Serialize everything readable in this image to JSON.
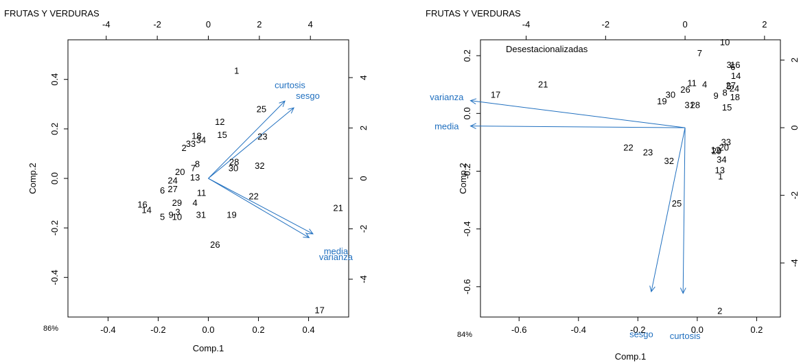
{
  "chart_data": [
    {
      "type": "scatter",
      "subtype": "biplot",
      "title": "FRUTAS Y VERDURAS",
      "xlabel": "Comp.1",
      "ylabel": "Comp.2",
      "footnote": "86%",
      "xlim": [
        -0.56,
        0.56
      ],
      "ylim": [
        -0.56,
        0.56
      ],
      "x_ticks": [
        "-0.4",
        "-0.2",
        "0.0",
        "0.2",
        "0.4"
      ],
      "x_tick_values": [
        -0.4,
        -0.2,
        0.0,
        0.2,
        0.4
      ],
      "y_ticks": [
        "-0.4",
        "-0.2",
        "0.0",
        "0.2",
        "0.4"
      ],
      "y_tick_values": [
        -0.4,
        -0.2,
        0.0,
        0.2,
        0.4
      ],
      "top_lim": [
        -5.5,
        5.5
      ],
      "top_ticks": [
        "-4",
        "-2",
        "0",
        "2",
        "4"
      ],
      "top_tick_values": [
        -4,
        -2,
        0,
        2,
        4
      ],
      "right_lim": [
        -5.5,
        5.5
      ],
      "right_ticks": [
        "-4",
        "-2",
        "0",
        "2",
        "4"
      ],
      "right_tick_values": [
        -4,
        -2,
        0,
        2,
        4
      ],
      "points": [
        {
          "label": "1",
          "x": 0.113,
          "y": 0.436
        },
        {
          "label": "2",
          "x": -0.097,
          "y": 0.125
        },
        {
          "label": "3",
          "x": -0.122,
          "y": -0.135
        },
        {
          "label": "4",
          "x": -0.053,
          "y": -0.097
        },
        {
          "label": "5",
          "x": -0.183,
          "y": -0.154
        },
        {
          "label": "6",
          "x": -0.183,
          "y": -0.047
        },
        {
          "label": "7",
          "x": -0.06,
          "y": 0.043
        },
        {
          "label": "8",
          "x": -0.044,
          "y": 0.06
        },
        {
          "label": "9",
          "x": -0.149,
          "y": -0.146
        },
        {
          "label": "10",
          "x": -0.125,
          "y": -0.154
        },
        {
          "label": "11",
          "x": -0.027,
          "y": -0.057
        },
        {
          "label": "12",
          "x": 0.046,
          "y": 0.23
        },
        {
          "label": "13",
          "x": -0.053,
          "y": 0.006
        },
        {
          "label": "14",
          "x": -0.246,
          "y": -0.126
        },
        {
          "label": "15",
          "x": 0.055,
          "y": 0.177
        },
        {
          "label": "16",
          "x": -0.263,
          "y": -0.104
        },
        {
          "label": "17",
          "x": 0.444,
          "y": -0.531
        },
        {
          "label": "18",
          "x": -0.047,
          "y": 0.173
        },
        {
          "label": "19",
          "x": 0.093,
          "y": -0.146
        },
        {
          "label": "20",
          "x": -0.113,
          "y": 0.028
        },
        {
          "label": "21",
          "x": 0.518,
          "y": -0.118
        },
        {
          "label": "22",
          "x": 0.181,
          "y": -0.07
        },
        {
          "label": "23",
          "x": 0.216,
          "y": 0.17
        },
        {
          "label": "24",
          "x": -0.142,
          "y": -0.007
        },
        {
          "label": "25",
          "x": 0.212,
          "y": 0.281
        },
        {
          "label": "26",
          "x": 0.027,
          "y": -0.266
        },
        {
          "label": "27",
          "x": -0.142,
          "y": -0.041
        },
        {
          "label": "28",
          "x": 0.103,
          "y": 0.068
        },
        {
          "label": "29",
          "x": -0.125,
          "y": -0.097
        },
        {
          "label": "30",
          "x": 0.1,
          "y": 0.043
        },
        {
          "label": "31",
          "x": -0.029,
          "y": -0.146
        },
        {
          "label": "32",
          "x": 0.205,
          "y": 0.053
        },
        {
          "label": "33",
          "x": -0.07,
          "y": 0.142
        },
        {
          "label": "34",
          "x": -0.029,
          "y": 0.156
        }
      ],
      "arrows": [
        {
          "label": "curtosis",
          "x": 3.0,
          "y": 3.07,
          "label_x": 3.2,
          "label_y": 3.72
        },
        {
          "label": "sesgo",
          "x": 3.35,
          "y": 2.8,
          "label_x": 3.9,
          "label_y": 3.3
        },
        {
          "label": "media",
          "x": 4.1,
          "y": -2.2,
          "label_x": 5.0,
          "label_y": -2.87
        },
        {
          "label": "varianza",
          "x": 3.95,
          "y": -2.35,
          "label_x": 5.0,
          "label_y": -3.1
        }
      ]
    },
    {
      "type": "scatter",
      "subtype": "biplot",
      "title": "FRUTAS Y VERDURAS",
      "xlabel": "Comp.1",
      "ylabel": "Comp.2",
      "footnote": "84%",
      "annotation": "Desestacionalizadas",
      "xlim": [
        -0.73,
        0.28
      ],
      "ylim": [
        -0.705,
        0.255
      ],
      "x_ticks": [
        "-0.6",
        "-0.4",
        "-0.2",
        "0.0",
        "0.2"
      ],
      "x_tick_values": [
        -0.6,
        -0.4,
        -0.2,
        0.0,
        0.2
      ],
      "y_ticks": [
        "-0.6",
        "-0.4",
        "-0.2",
        "0.0",
        "0.2"
      ],
      "y_tick_values": [
        -0.6,
        -0.4,
        -0.2,
        0.0,
        0.2
      ],
      "top_lim": [
        -5.15,
        2.4
      ],
      "top_ticks": [
        "-4",
        "-2",
        "0",
        "2"
      ],
      "top_tick_values": [
        -4,
        -2,
        0,
        2
      ],
      "right_lim": [
        -5.6,
        2.6
      ],
      "right_ticks": [
        "-4",
        "-2",
        "0",
        "2"
      ],
      "right_tick_values": [
        -4,
        -2,
        0,
        2
      ],
      "points": [
        {
          "label": "1",
          "x": 0.078,
          "y": -0.217
        },
        {
          "label": "2",
          "x": 0.076,
          "y": -0.682
        },
        {
          "label": "3",
          "x": 0.107,
          "y": 0.169
        },
        {
          "label": "4",
          "x": 0.025,
          "y": 0.102
        },
        {
          "label": "5",
          "x": 0.107,
          "y": 0.095
        },
        {
          "label": "6",
          "x": 0.12,
          "y": 0.162
        },
        {
          "label": "7",
          "x": 0.008,
          "y": 0.21
        },
        {
          "label": "8",
          "x": 0.093,
          "y": 0.073
        },
        {
          "label": "9",
          "x": 0.063,
          "y": 0.063
        },
        {
          "label": "10",
          "x": 0.093,
          "y": 0.248
        },
        {
          "label": "11",
          "x": -0.018,
          "y": 0.106
        },
        {
          "label": "12",
          "x": 0.062,
          "y": -0.125
        },
        {
          "label": "13",
          "x": 0.076,
          "y": -0.195
        },
        {
          "label": "14",
          "x": 0.13,
          "y": 0.131
        },
        {
          "label": "15",
          "x": 0.1,
          "y": 0.022
        },
        {
          "label": "16",
          "x": 0.128,
          "y": 0.169
        },
        {
          "label": "17",
          "x": -0.679,
          "y": 0.066
        },
        {
          "label": "18",
          "x": 0.127,
          "y": 0.058
        },
        {
          "label": "19",
          "x": -0.119,
          "y": 0.044
        },
        {
          "label": "20",
          "x": 0.09,
          "y": -0.117
        },
        {
          "label": "21",
          "x": -0.519,
          "y": 0.102
        },
        {
          "label": "22",
          "x": -0.232,
          "y": -0.117
        },
        {
          "label": "23",
          "x": -0.166,
          "y": -0.134
        },
        {
          "label": "24",
          "x": 0.125,
          "y": 0.088
        },
        {
          "label": "25",
          "x": -0.069,
          "y": -0.31
        },
        {
          "label": "26",
          "x": -0.04,
          "y": 0.084
        },
        {
          "label": "27",
          "x": 0.113,
          "y": 0.098
        },
        {
          "label": "28",
          "x": -0.007,
          "y": 0.03
        },
        {
          "label": "29",
          "x": 0.065,
          "y": -0.129
        },
        {
          "label": "30",
          "x": -0.09,
          "y": 0.066
        },
        {
          "label": "31",
          "x": -0.026,
          "y": 0.03
        },
        {
          "label": "32",
          "x": -0.095,
          "y": -0.163
        },
        {
          "label": "33",
          "x": 0.097,
          "y": -0.098
        },
        {
          "label": "34",
          "x": 0.082,
          "y": -0.159
        }
      ],
      "arrows": [
        {
          "label": "varianza",
          "x": -5.4,
          "y": 0.8,
          "label_x": -6.0,
          "label_y": 0.92
        },
        {
          "label": "media",
          "x": -5.4,
          "y": 0.05,
          "label_x": -6.0,
          "label_y": 0.05
        },
        {
          "label": "sesgo",
          "x": -0.85,
          "y": -4.85,
          "label_x": -1.1,
          "label_y": -6.1
        },
        {
          "label": "curtosis",
          "x": -0.05,
          "y": -4.9,
          "label_x": 0.0,
          "label_y": -6.15
        }
      ]
    }
  ]
}
